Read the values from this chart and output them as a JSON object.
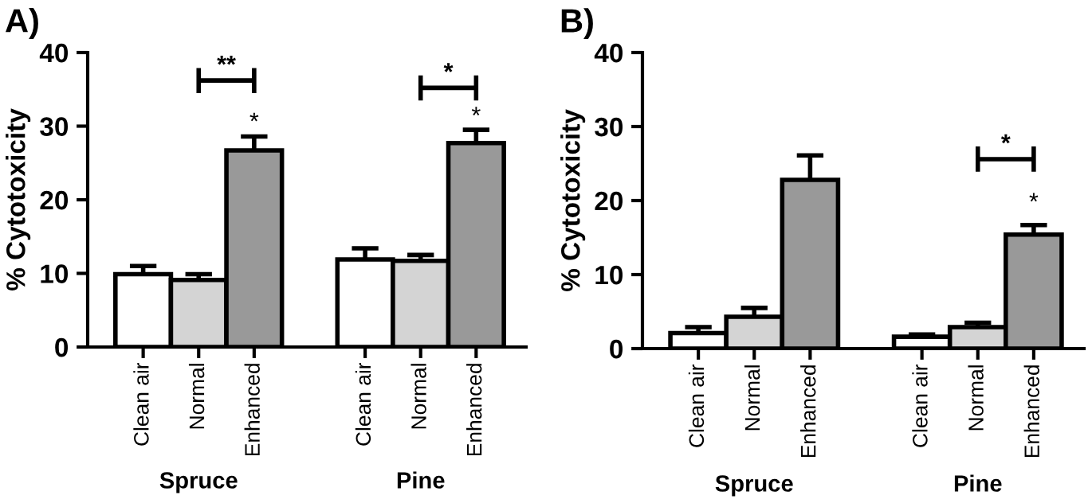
{
  "chart_data": [
    {
      "type": "bar",
      "title": "A)",
      "ylabel": "% Cytotoxicity",
      "categories": [
        "Clean air",
        "Normal",
        "Enhanced",
        null,
        "Clean air",
        "Normal",
        "Enhanced"
      ],
      "ylim": [
        0,
        40
      ],
      "yticks": [
        0,
        10,
        20,
        30,
        40
      ],
      "values": [
        9.9,
        9.1,
        26.7,
        null,
        11.9,
        11.7,
        27.7
      ],
      "errors": [
        1.1,
        0.8,
        1.9,
        null,
        1.5,
        0.8,
        1.8
      ],
      "colors": [
        "#ffffff",
        "#d4d4d4",
        "#999999",
        null,
        "#ffffff",
        "#d4d4d4",
        "#999999"
      ],
      "annotations": [
        "**",
        "*",
        "*",
        "*",
        "Spruce",
        "Pine"
      ]
    },
    {
      "type": "bar",
      "title": "B)",
      "ylabel": "% Cytotoxicity",
      "categories": [
        "Clean air",
        "Normal",
        "Enhanced",
        null,
        "Clean air",
        "Normal",
        "Enhanced"
      ],
      "ylim": [
        0,
        40
      ],
      "yticks": [
        0,
        10,
        20,
        30,
        40
      ],
      "values": [
        2.1,
        4.3,
        22.8,
        null,
        1.6,
        2.9,
        15.4
      ],
      "errors": [
        0.8,
        1.2,
        3.3,
        null,
        0.3,
        0.6,
        1.3
      ],
      "colors": [
        "#ffffff",
        "#d4d4d4",
        "#999999",
        null,
        "#ffffff",
        "#d4d4d4",
        "#999999"
      ],
      "annotations": [
        "*",
        "*",
        "Spruce",
        "Pine"
      ]
    }
  ]
}
